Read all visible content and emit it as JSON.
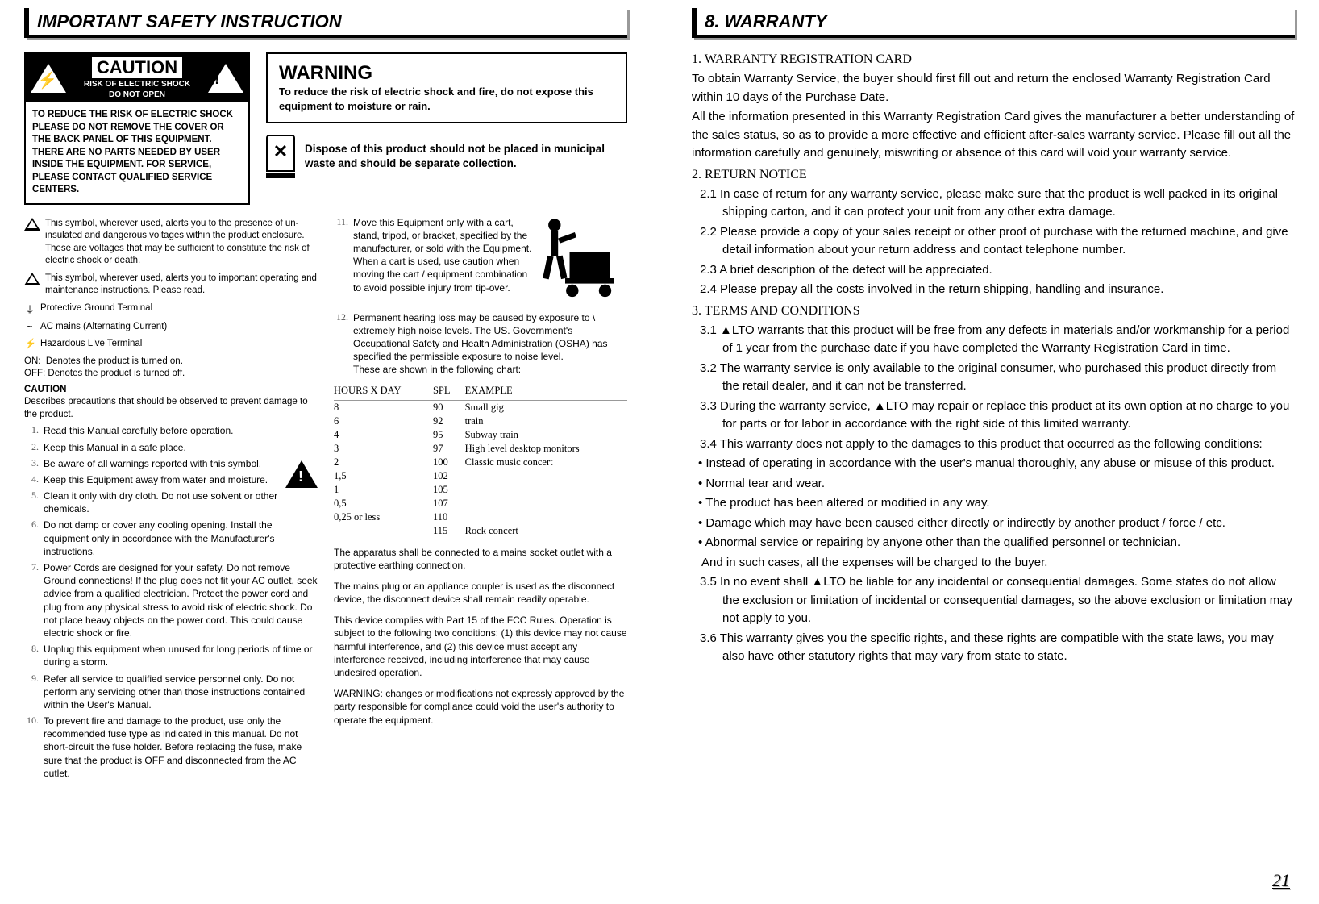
{
  "left": {
    "header": "IMPORTANT SAFETY INSTRUCTION",
    "caution": {
      "label": "CAUTION",
      "sub1": "RISK OF ELECTRIC SHOCK",
      "sub2": "DO NOT OPEN",
      "body": "TO REDUCE THE RISK OF ELECTRIC SHOCK PLEASE DO NOT REMOVE THE COVER OR THE BACK PANEL OF THIS EQUIPMENT. THERE ARE NO PARTS NEEDED BY USER INSIDE THE EQUIPMENT. FOR SERVICE, PLEASE CONTACT QUALIFIED SERVICE CENTERS."
    },
    "warning": {
      "title": "WARNING",
      "body": "To reduce the risk of electric shock and fire, do not expose this equipment to moisture or rain."
    },
    "dispose": "Dispose of this product should not be placed in municipal waste and should be separate collection.",
    "symbol_bolt": "This symbol, wherever used, alerts you to the presence of un-insulated and dangerous voltages within the product enclosure. These are voltages that may be sufficient to constitute the risk of electric shock or death.",
    "symbol_excl": "This symbol, wherever used, alerts you to important operating and maintenance instructions. Please read.",
    "glyphs": {
      "ground": "Protective Ground Terminal",
      "ac": "AC mains (Alternating Current)",
      "haz": "Hazardous Live Terminal",
      "on": "Denotes the product is turned on.",
      "off": "Denotes the product is turned off."
    },
    "caution_word": "CAUTION",
    "caution_desc": "Describes precautions that should be observed to prevent damage to the product.",
    "list_a": [
      "Read this Manual carefully before operation.",
      "Keep this Manual in a safe place.",
      "Be aware of all warnings reported with this symbol.",
      "Keep this Equipment away from water and moisture.",
      "Clean it only with dry cloth. Do not use solvent or other chemicals.",
      "Do not damp or cover any cooling opening. Install the equipment only in accordance with the Manufacturer's instructions.",
      "Power Cords are designed for your safety. Do not remove Ground connections! If the plug does not fit your AC outlet, seek advice from a qualified electrician. Protect the power cord and plug from any physical stress to avoid risk of electric shock. Do not place heavy objects on the power cord. This could cause electric shock or fire.",
      "Unplug this equipment when unused for long periods of time or during a storm.",
      "Refer all service to qualified service personnel only. Do not perform any servicing other than those instructions contained within the User's Manual.",
      "To prevent fire and damage to the product, use only the recommended fuse type as indicated in this manual. Do not short-circuit the fuse holder. Before replacing the fuse, make sure that the product is OFF and disconnected from the AC outlet."
    ],
    "item11": "Move this Equipment only with a cart, stand, tripod, or bracket, specified by the manufacturer, or sold with the Equipment. When a cart is used, use caution when moving the cart / equipment combination to avoid possible injury from tip-over.",
    "item12a": "Permanent hearing loss may be caused by exposure to \\ extremely high noise levels. The US. Government's Occupational Safety and Health Administration (OSHA) has specified the permissible exposure to noise level.",
    "item12b": "These are shown in the following chart:",
    "table": {
      "headers": [
        "HOURS X DAY",
        "SPL",
        "EXAMPLE"
      ],
      "rows": [
        [
          "8",
          "90",
          "Small gig"
        ],
        [
          "6",
          "92",
          "train"
        ],
        [
          "4",
          "95",
          "Subway train"
        ],
        [
          "3",
          "97",
          "High level desktop monitors"
        ],
        [
          "2",
          "100",
          "Classic music concert"
        ],
        [
          "1,5",
          "102",
          ""
        ],
        [
          "1",
          "105",
          ""
        ],
        [
          "0,5",
          "107",
          ""
        ],
        [
          "0,25 or less",
          "110",
          ""
        ],
        [
          "",
          "115",
          "Rock concert"
        ]
      ]
    },
    "para1": "The apparatus shall be connected to a mains socket outlet with a protective earthing connection.",
    "para2": "The mains plug or an appliance coupler is used as the disconnect device, the disconnect device shall remain readily operable.",
    "para3": "This device complies with Part 15 of the FCC Rules. Operation is subject to the following two conditions: (1) this device may not cause harmful interference, and (2) this device must accept any interference received, including interference that may cause undesired operation.",
    "para4": "WARNING: changes or modifications not expressly approved by the party responsible for compliance could void the user's authority to operate the equipment."
  },
  "right": {
    "header": "8. WARRANTY",
    "h1": "1. WARRANTY REGISTRATION CARD",
    "p1": "To obtain Warranty Service, the buyer should first fill out and return the enclosed Warranty Registration Card within 10 days of the Purchase Date.",
    "p1b": "All the information presented in this Warranty Registration Card gives the manufacturer a better understanding of the sales status, so as to provide a more effective and efficient after-sales warranty service. Please fill out all the information carefully and genuinely, miswriting or absence of this card will void your warranty service.",
    "h2": "2. RETURN NOTICE",
    "r21": "2.1 In case of return for any warranty service, please make sure that the product is well packed in its original shipping carton, and it can protect your unit from any other extra damage.",
    "r22": "2.2 Please provide a copy of your sales receipt or other proof of purchase with the returned machine, and give detail information about your return address and contact telephone number.",
    "r23": "2.3 A brief description of the defect will be appreciated.",
    "r24": "2.4 Please prepay all the costs involved in the return shipping, handling and insurance.",
    "h3": "3. TERMS AND CONDITIONS",
    "r31": "3.1 ▲LTO warrants that this product will be free from any defects in materials and/or workmanship for a period of 1 year from the purchase date if you have completed the Warranty Registration Card in time.",
    "r32": "3.2 The warranty service is only available to the original consumer, who purchased this product directly from the retail dealer, and it can not be transferred.",
    "r33": "3.3 During the warranty service, ▲LTO may repair or replace this product at its own option at no charge to you for parts or for labor in accordance with the right side of this limited warranty.",
    "r34": "3.4 This warranty does not apply to the damages to this product that occurred as the following conditions:",
    "b1": "Instead of operating in accordance with the user's manual thoroughly, any abuse or misuse of this product.",
    "b2": "Normal tear and wear.",
    "b3": "The product has been altered or modified in any way.",
    "b4": "Damage which may have been caused either directly or indirectly by another product / force / etc.",
    "b5": "Abnormal service or repairing by anyone other than the qualified personnel or technician.",
    "b_after": "And in such cases, all the expenses will be charged to the buyer.",
    "r35": "3.5 In no event shall ▲LTO be liable for any incidental or consequential damages. Some states do not allow the exclusion or limitation of incidental or consequential damages, so the above exclusion or limitation may not apply to you.",
    "r36": "3.6 This warranty gives you the specific rights, and these rights are compatible with the state laws, you may also have other statutory rights that may vary from state to state."
  },
  "page_num": "21"
}
